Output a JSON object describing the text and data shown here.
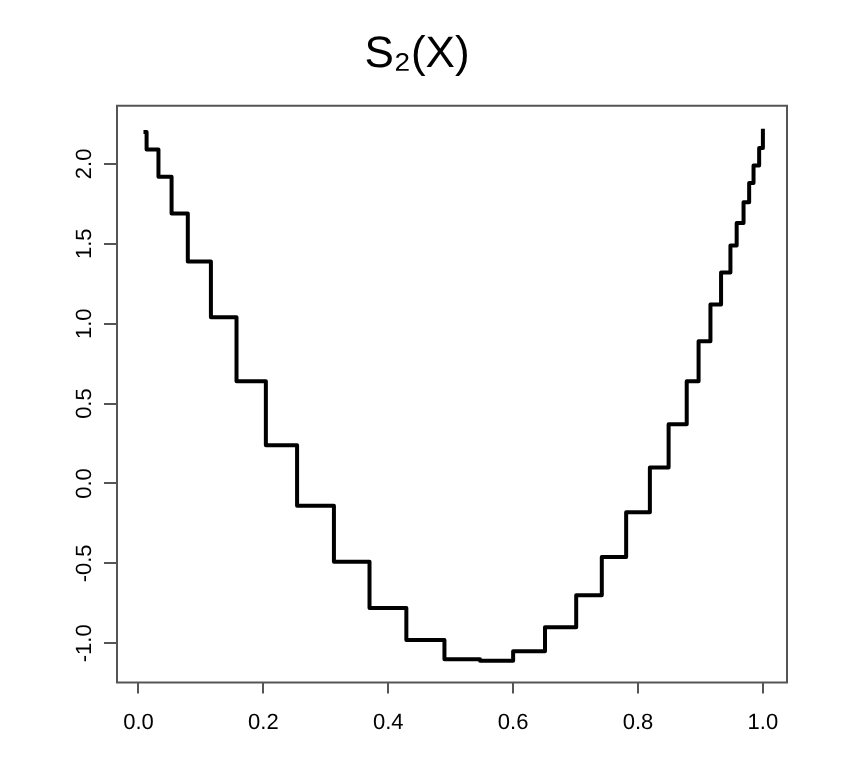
{
  "chart_data": {
    "type": "step",
    "title": "S₂(X)",
    "x": [
      0.008,
      0.013,
      0.032,
      0.053,
      0.079,
      0.116,
      0.157,
      0.204,
      0.254,
      0.313,
      0.37,
      0.429,
      0.49,
      0.547,
      0.6,
      0.651,
      0.701,
      0.742,
      0.781,
      0.819,
      0.849,
      0.878,
      0.897,
      0.916,
      0.933,
      0.948,
      0.958,
      0.969,
      0.978,
      0.985,
      0.994,
      1.0
    ],
    "series": [
      {
        "color": "#000000",
        "values": [
          2.2,
          2.09,
          1.92,
          1.69,
          1.39,
          1.04,
          0.64,
          0.24,
          -0.14,
          -0.49,
          -0.78,
          -0.98,
          -1.1,
          -1.11,
          -1.05,
          -0.9,
          -0.7,
          -0.46,
          -0.18,
          0.1,
          0.37,
          0.64,
          0.89,
          1.12,
          1.32,
          1.49,
          1.63,
          1.76,
          1.88,
          1.99,
          2.1,
          2.22
        ]
      }
    ],
    "xlim": [
      -0.036,
      1.037
    ],
    "ylim": [
      -1.24,
      2.37
    ],
    "xticks": [
      {
        "value": 0,
        "label": "0.0"
      },
      0.2,
      0.4,
      0.6,
      0.8,
      {
        "value": 1,
        "label": "1.0"
      }
    ],
    "yticks": [
      {
        "value": -1,
        "label": "-1.0"
      },
      -0.5,
      {
        "value": 0,
        "label": "0.0"
      },
      0.5,
      {
        "value": 1,
        "label": "1.0"
      },
      1.5,
      {
        "value": 2,
        "label": "2.0"
      }
    ],
    "grid": false,
    "legend": false,
    "marker": "none",
    "line_style": "solid"
  }
}
